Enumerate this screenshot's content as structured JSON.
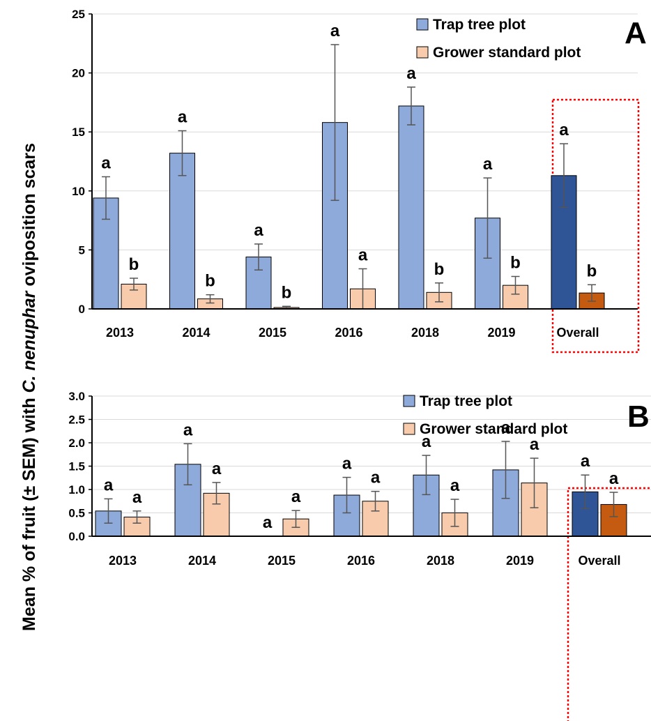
{
  "figure": {
    "ylabel_parts": [
      "Mean % of fruit (± SEM) with ",
      "C. nenuphar",
      " oviposition scars"
    ]
  },
  "chart_data": [
    {
      "type": "bar",
      "panel": "A",
      "categories": [
        "2013",
        "2014",
        "2015",
        "2016",
        "2018",
        "2019",
        "Overall"
      ],
      "ylim": [
        0,
        25
      ],
      "yticks": [
        "0",
        "5",
        "10",
        "15",
        "20",
        "25"
      ],
      "grid": true,
      "legend_position": "top-right",
      "highlight_category": "Overall",
      "series": [
        {
          "name": "Trap tree plot",
          "color": "#8eaadb",
          "overall_color": "#2f5597",
          "values": [
            9.4,
            13.2,
            4.4,
            15.8,
            17.2,
            7.7,
            11.3
          ],
          "sem": [
            1.8,
            1.9,
            1.1,
            6.6,
            1.6,
            3.4,
            2.7
          ],
          "letters": [
            "a",
            "a",
            "a",
            "a",
            "a",
            "a",
            "a"
          ]
        },
        {
          "name": "Grower standard plot",
          "color": "#f8cbad",
          "overall_color": "#c55a11",
          "values": [
            2.1,
            0.85,
            0.12,
            1.7,
            1.4,
            2.0,
            1.35
          ],
          "sem": [
            0.5,
            0.35,
            0.1,
            1.7,
            0.8,
            0.75,
            0.7
          ],
          "letters": [
            "b",
            "b",
            "b",
            "a",
            "b",
            "b",
            "b"
          ]
        }
      ]
    },
    {
      "type": "bar",
      "panel": "B",
      "categories": [
        "2013",
        "2014",
        "2015",
        "2016",
        "2018",
        "2019",
        "Overall"
      ],
      "ylim": [
        0,
        3
      ],
      "yticks": [
        "0.0",
        "0.5",
        "1.0",
        "1.5",
        "2.0",
        "2.5",
        "3.0"
      ],
      "grid": true,
      "legend_position": "top-right",
      "highlight_category": "Overall",
      "series": [
        {
          "name": "Trap tree plot",
          "color": "#8eaadb",
          "overall_color": "#2f5597",
          "values": [
            0.54,
            1.54,
            0.0,
            0.88,
            1.31,
            1.42,
            0.95
          ],
          "sem": [
            0.26,
            0.44,
            0.0,
            0.38,
            0.42,
            0.61,
            0.36
          ],
          "letters": [
            "a",
            "a",
            "a",
            "a",
            "a",
            "a",
            "a"
          ]
        },
        {
          "name": "Grower standard plot",
          "color": "#f8cbad",
          "overall_color": "#c55a11",
          "values": [
            0.41,
            0.92,
            0.37,
            0.75,
            0.5,
            1.14,
            0.68
          ],
          "sem": [
            0.13,
            0.23,
            0.18,
            0.21,
            0.29,
            0.53,
            0.26
          ],
          "letters": [
            "a",
            "a",
            "a",
            "a",
            "a",
            "a",
            "a"
          ]
        }
      ]
    }
  ]
}
